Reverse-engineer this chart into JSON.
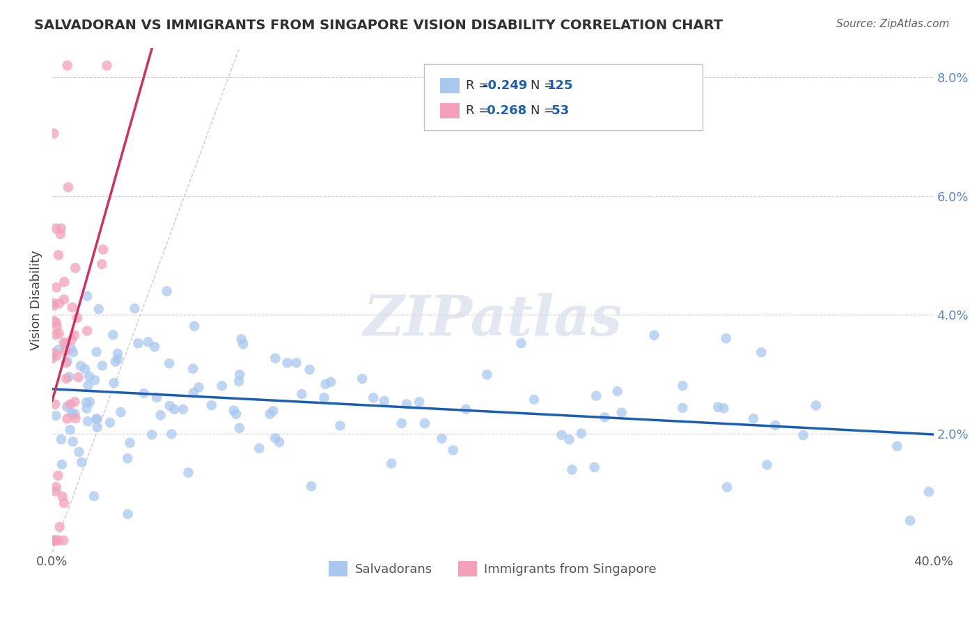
{
  "title": "SALVADORAN VS IMMIGRANTS FROM SINGAPORE VISION DISABILITY CORRELATION CHART",
  "source": "Source: ZipAtlas.com",
  "ylabel": "Vision Disability",
  "xlim": [
    0.0,
    0.4
  ],
  "ylim": [
    0.0,
    0.085
  ],
  "yticks": [
    0.02,
    0.04,
    0.06,
    0.08
  ],
  "ytick_labels": [
    "2.0%",
    "4.0%",
    "6.0%",
    "8.0%"
  ],
  "blue_R": -0.249,
  "blue_N": 125,
  "pink_R": 0.268,
  "pink_N": 53,
  "blue_color": "#a8c8f0",
  "pink_color": "#f4a0b8",
  "blue_line_color": "#1a5fb4",
  "pink_line_color": "#d03060",
  "diag_color": "#cccccc",
  "background_color": "#ffffff",
  "title_color": "#303030",
  "source_color": "#606060",
  "grid_color": "#cccccc",
  "tick_color": "#5588cc",
  "legend_box_color": "#e8e8f0",
  "legend_text_color": "#303030",
  "legend_value_color": "#1a5fb4"
}
